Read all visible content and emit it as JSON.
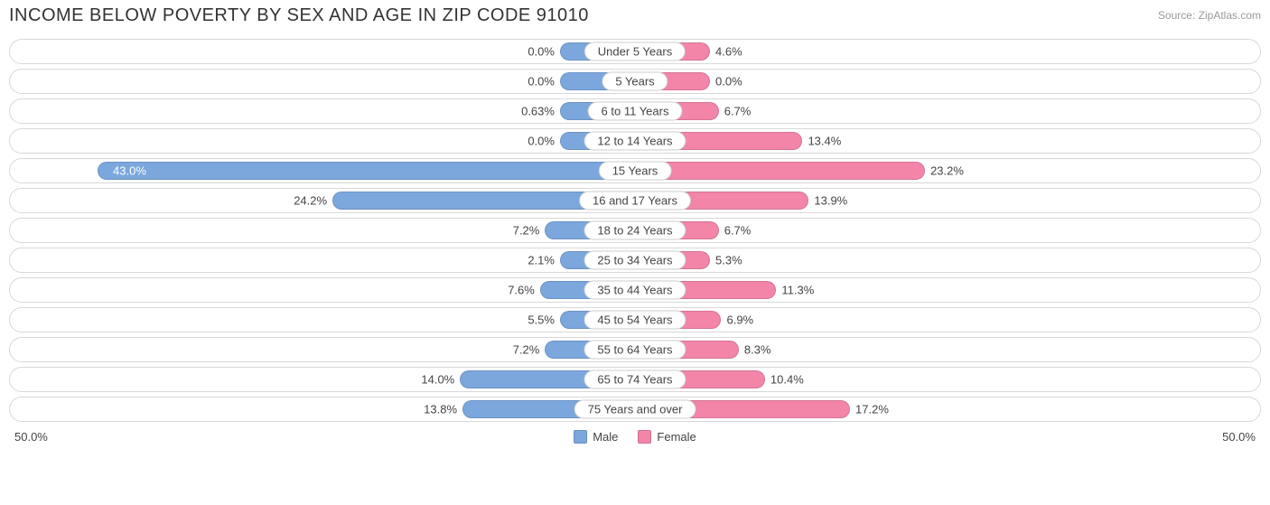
{
  "title": "INCOME BELOW POVERTY BY SEX AND AGE IN ZIP CODE 91010",
  "source": "Source: ZipAtlas.com",
  "chart": {
    "type": "diverging-bar",
    "axis_max": 50.0,
    "axis_left_label": "50.0%",
    "axis_right_label": "50.0%",
    "min_bar_pct": 6.0,
    "male_color": "#7ba7dd",
    "female_color": "#f285a8",
    "track_border_color": "#d8d8d8",
    "label_pill_border": "#cccccc",
    "background_color": "#ffffff",
    "text_color": "#444444",
    "rows": [
      {
        "category": "Under 5 Years",
        "male": 0.0,
        "male_label": "0.0%",
        "female": 4.6,
        "female_label": "4.6%"
      },
      {
        "category": "5 Years",
        "male": 0.0,
        "male_label": "0.0%",
        "female": 0.0,
        "female_label": "0.0%"
      },
      {
        "category": "6 to 11 Years",
        "male": 0.63,
        "male_label": "0.63%",
        "female": 6.7,
        "female_label": "6.7%"
      },
      {
        "category": "12 to 14 Years",
        "male": 0.0,
        "male_label": "0.0%",
        "female": 13.4,
        "female_label": "13.4%"
      },
      {
        "category": "15 Years",
        "male": 43.0,
        "male_label": "43.0%",
        "female": 23.2,
        "female_label": "23.2%",
        "male_inside": true
      },
      {
        "category": "16 and 17 Years",
        "male": 24.2,
        "male_label": "24.2%",
        "female": 13.9,
        "female_label": "13.9%"
      },
      {
        "category": "18 to 24 Years",
        "male": 7.2,
        "male_label": "7.2%",
        "female": 6.7,
        "female_label": "6.7%"
      },
      {
        "category": "25 to 34 Years",
        "male": 2.1,
        "male_label": "2.1%",
        "female": 5.3,
        "female_label": "5.3%"
      },
      {
        "category": "35 to 44 Years",
        "male": 7.6,
        "male_label": "7.6%",
        "female": 11.3,
        "female_label": "11.3%"
      },
      {
        "category": "45 to 54 Years",
        "male": 5.5,
        "male_label": "5.5%",
        "female": 6.9,
        "female_label": "6.9%"
      },
      {
        "category": "55 to 64 Years",
        "male": 7.2,
        "male_label": "7.2%",
        "female": 8.3,
        "female_label": "8.3%"
      },
      {
        "category": "65 to 74 Years",
        "male": 14.0,
        "male_label": "14.0%",
        "female": 10.4,
        "female_label": "10.4%"
      },
      {
        "category": "75 Years and over",
        "male": 13.8,
        "male_label": "13.8%",
        "female": 17.2,
        "female_label": "17.2%"
      }
    ],
    "legend": {
      "male": "Male",
      "female": "Female"
    }
  }
}
